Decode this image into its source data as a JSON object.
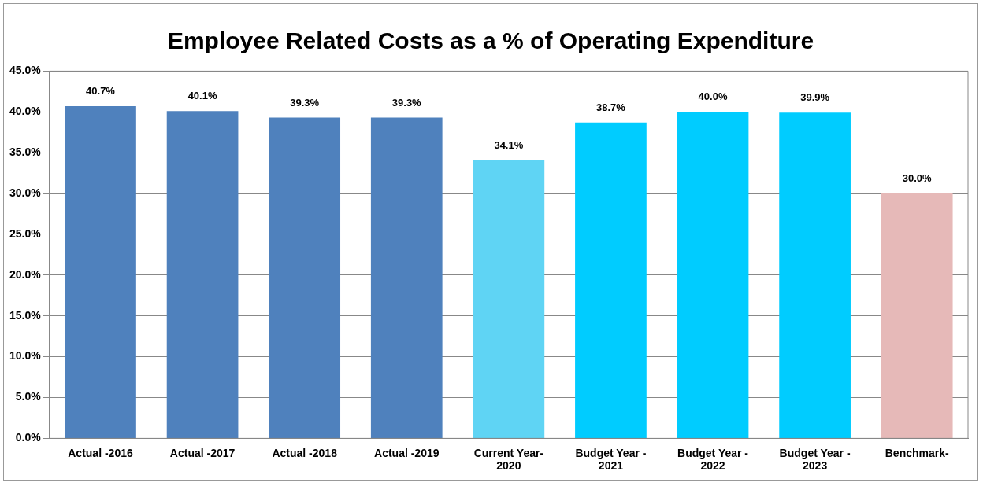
{
  "chart_data": {
    "type": "bar",
    "title": "Employee Related Costs as a % of Operating Expenditure",
    "categories": [
      "Actual -2016",
      "Actual -2017",
      "Actual -2018",
      "Actual -2019",
      "Current Year-2020",
      "Budget Year - 2021",
      "Budget Year - 2022",
      "Budget Year - 2023",
      "Benchmark-"
    ],
    "values": [
      40.7,
      40.1,
      39.3,
      39.3,
      34.1,
      38.7,
      40.0,
      39.9,
      30.0
    ],
    "value_labels": [
      "40.7%",
      "40.1%",
      "39.3%",
      "39.3%",
      "34.1%",
      "38.7%",
      "40.0%",
      "39.9%",
      "30.0%"
    ],
    "colors": [
      "#4f81bd",
      "#4f81bd",
      "#4f81bd",
      "#4f81bd",
      "#5fd4f4",
      "#00ccff",
      "#00ccff",
      "#00ccff",
      "#e6b9b8"
    ],
    "ylim": [
      0,
      45
    ],
    "yticks": [
      {
        "value": 0,
        "label": "0.0%"
      },
      {
        "value": 5,
        "label": "5.0%"
      },
      {
        "value": 10,
        "label": "10.0%"
      },
      {
        "value": 15,
        "label": "15.0%"
      },
      {
        "value": 20,
        "label": "20.0%"
      },
      {
        "value": 25,
        "label": "25.0%"
      },
      {
        "value": 30,
        "label": "30.0%"
      },
      {
        "value": 35,
        "label": "35.0%"
      },
      {
        "value": 40,
        "label": "40.0%"
      },
      {
        "value": 45,
        "label": "45.0%"
      }
    ],
    "grid": "y",
    "legend": false
  }
}
